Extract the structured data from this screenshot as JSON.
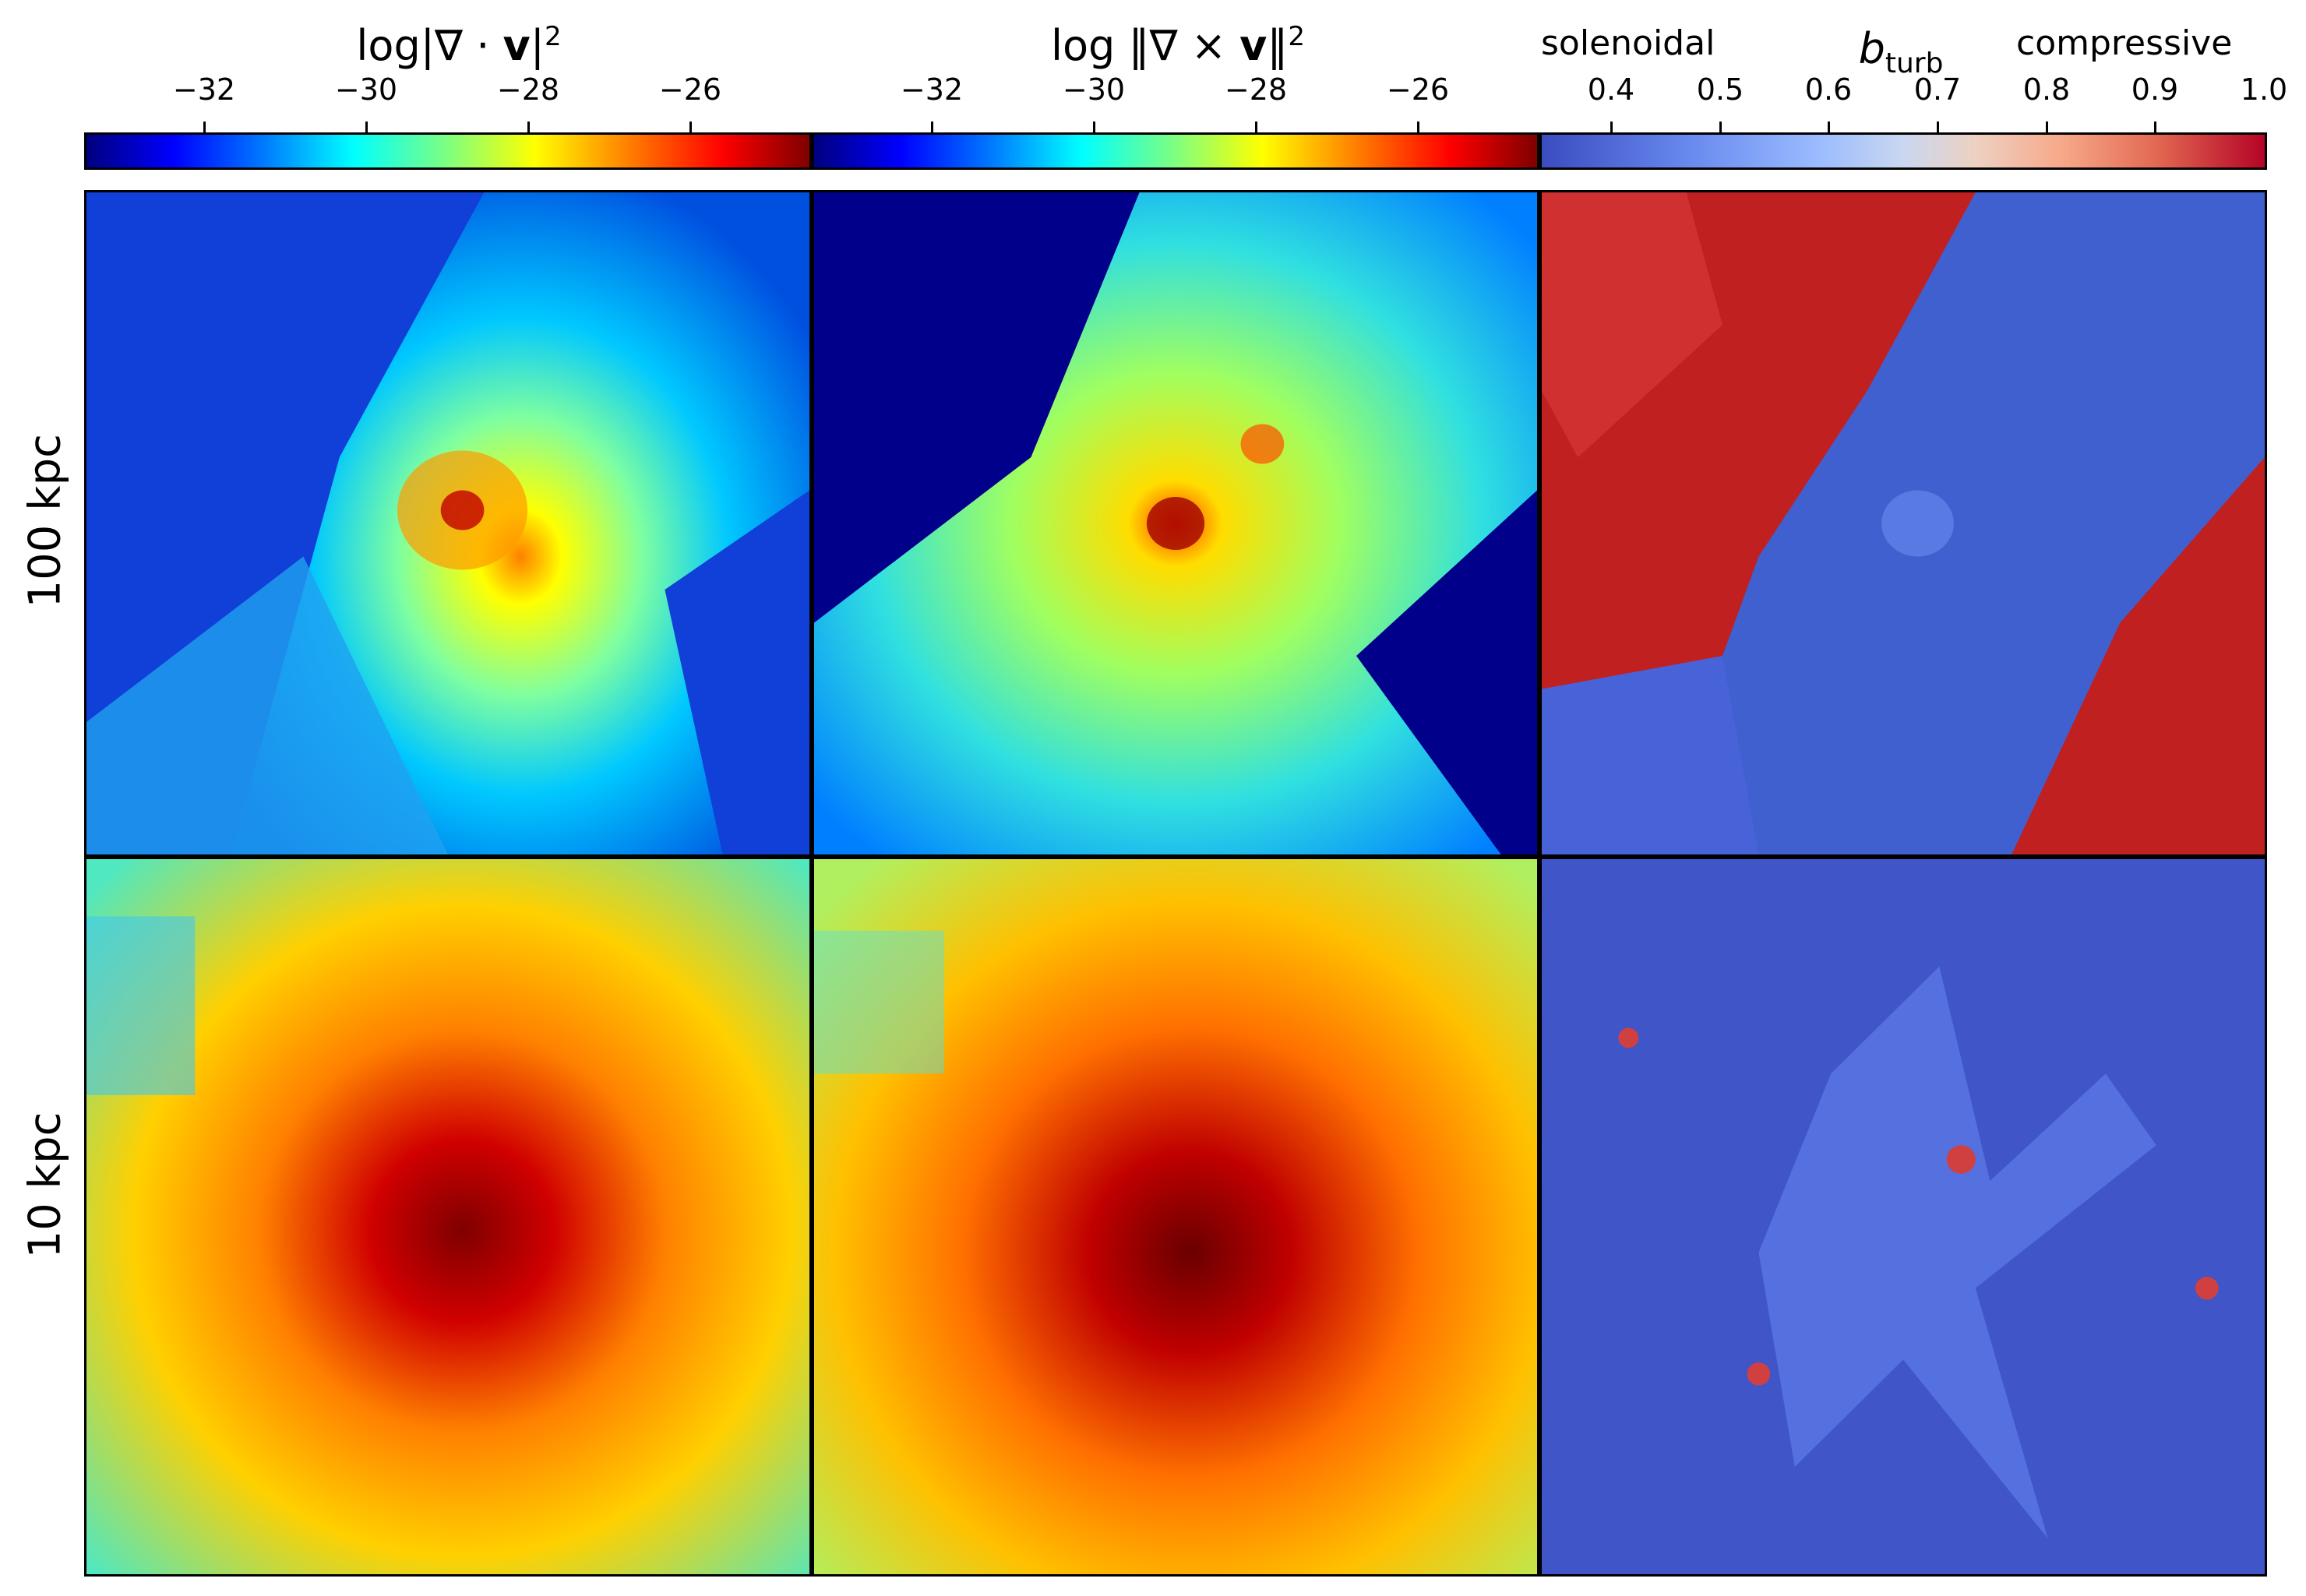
{
  "colorbars": [
    {
      "title_prefix": "log|∇ · ",
      "title_bold": "v",
      "title_suffix": "|",
      "title_sup": "2",
      "ticks": [
        "−32",
        "−30",
        "−28",
        "−26"
      ],
      "colormap": "jet"
    },
    {
      "title_prefix": "log ‖∇ × ",
      "title_bold": "v",
      "title_suffix": "‖",
      "title_sup": "2",
      "ticks": [
        "−32",
        "−30",
        "−28",
        "−26"
      ],
      "colormap": "jet"
    },
    {
      "title_prefix": "b",
      "title_sub": "turb",
      "left_word": "solenoidal",
      "right_word": "compressive",
      "ticks": [
        "0.4",
        "0.5",
        "0.6",
        "0.7",
        "0.8",
        "0.9",
        "1.0"
      ],
      "colormap": "coolwarm"
    }
  ],
  "rows": [
    {
      "label": "100 kpc"
    },
    {
      "label": "10 kpc"
    }
  ],
  "panels": [
    {
      "row": 0,
      "col": 0,
      "field": "divergence",
      "scale": "100 kpc"
    },
    {
      "row": 0,
      "col": 1,
      "field": "vorticity",
      "scale": "100 kpc"
    },
    {
      "row": 0,
      "col": 2,
      "field": "b_turb",
      "scale": "100 kpc"
    },
    {
      "row": 1,
      "col": 0,
      "field": "divergence",
      "scale": "10 kpc",
      "quiver": true
    },
    {
      "row": 1,
      "col": 1,
      "field": "vorticity",
      "scale": "10 kpc",
      "quiver": true
    },
    {
      "row": 1,
      "col": 2,
      "field": "b_turb",
      "scale": "10 kpc",
      "quiver": true
    }
  ],
  "colors": {
    "jet": [
      "#00007f",
      "#0000ff",
      "#007fff",
      "#00ffff",
      "#7fff7f",
      "#ffff00",
      "#ff7f00",
      "#ff0000",
      "#7f0000"
    ],
    "coolwarm": [
      "#3b4cc0",
      "#6788ee",
      "#9abbff",
      "#c9d7f0",
      "#edd1c2",
      "#f7a889",
      "#e26952",
      "#b40426"
    ],
    "quiver": "#000000"
  }
}
